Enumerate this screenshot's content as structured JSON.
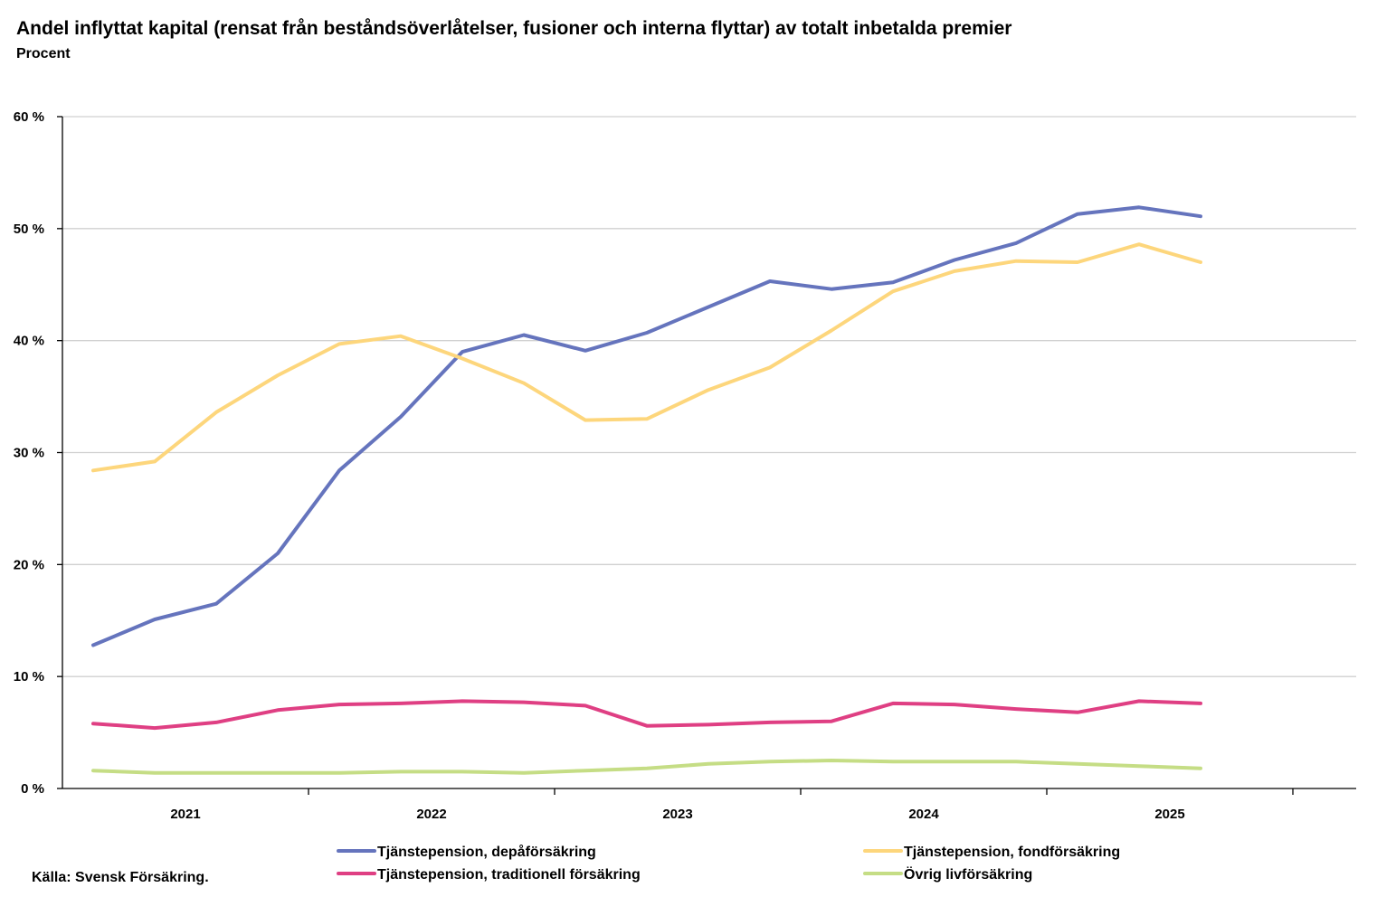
{
  "title": "Andel inflyttat kapital (rensat från beståndsöverlåtelser, fusioner och interna flyttar) av totalt inbetalda premier",
  "subtitle": "Procent",
  "source": "Källa: Svensk Försäkring.",
  "chart_data": {
    "type": "line",
    "title": "Andel inflyttat kapital (rensat från beståndsöverlåtelser, fusioner och interna flyttar) av totalt inbetalda premier",
    "ylabel": "Procent",
    "ylim": [
      0,
      60
    ],
    "yticks": [
      0,
      10,
      20,
      30,
      40,
      50,
      60
    ],
    "ytick_labels": [
      "0 %",
      "10 %",
      "20 %",
      "30 %",
      "40 %",
      "50 %",
      "60 %"
    ],
    "x_groups": [
      "2021",
      "2022",
      "2023",
      "2024",
      "2025"
    ],
    "x": [
      "2021 Q1",
      "2021 Q2",
      "2021 Q3",
      "2021 Q4",
      "2022 Q1",
      "2022 Q2",
      "2022 Q3",
      "2022 Q4",
      "2023 Q1",
      "2023 Q2",
      "2023 Q3",
      "2023 Q4",
      "2024 Q1",
      "2024 Q2",
      "2024 Q3",
      "2024 Q4",
      "2025 Q1",
      "2025 Q2",
      "2025 Q3"
    ],
    "grid": true,
    "legend_position": "bottom",
    "series": [
      {
        "name": "Tjänstepension, depåförsäkring",
        "color": "#6574bd",
        "values": [
          12.8,
          15.1,
          16.5,
          21.0,
          28.4,
          33.2,
          39.0,
          40.5,
          39.1,
          40.7,
          43.0,
          45.3,
          44.6,
          45.2,
          47.2,
          48.7,
          51.3,
          51.9,
          51.1
        ]
      },
      {
        "name": "Tjänstepension, fondförsäkring",
        "color": "#fdd67c",
        "values": [
          28.4,
          29.2,
          33.6,
          36.9,
          39.7,
          40.4,
          38.4,
          36.2,
          32.9,
          33.0,
          35.6,
          37.6,
          40.9,
          44.4,
          46.2,
          47.1,
          47.0,
          48.6,
          47.0
        ]
      },
      {
        "name": "Tjänstepension, traditionell försäkring",
        "color": "#df3f83",
        "values": [
          5.8,
          5.4,
          5.9,
          7.0,
          7.5,
          7.6,
          7.8,
          7.7,
          7.4,
          5.6,
          5.7,
          5.9,
          6.0,
          7.6,
          7.5,
          7.1,
          6.8,
          7.8,
          7.6
        ]
      },
      {
        "name": "Övrig livförsäkring",
        "color": "#c5dd85",
        "values": [
          1.6,
          1.4,
          1.4,
          1.4,
          1.4,
          1.5,
          1.5,
          1.4,
          1.6,
          1.8,
          2.2,
          2.4,
          2.5,
          2.4,
          2.4,
          2.4,
          2.2,
          2.0,
          1.8
        ]
      }
    ]
  }
}
